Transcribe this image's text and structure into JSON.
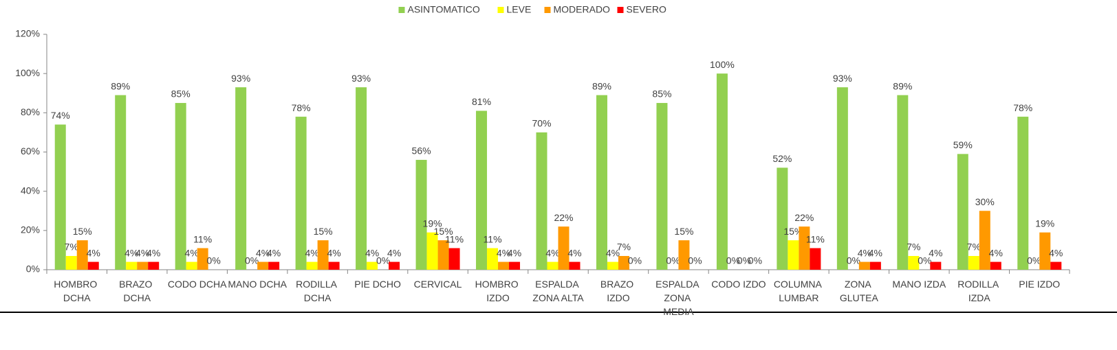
{
  "chart_data": {
    "type": "bar",
    "categories": [
      "HOMBRO DCHA",
      "BRAZO DCHA",
      "CODO DCHA",
      "MANO DCHA",
      "RODILLA DCHA",
      "PIE DCHO",
      "CERVICAL",
      "HOMBRO IZDO",
      "ESPALDA ZONA ALTA",
      "BRAZO IZDO",
      "ESPALDA ZONA MEDIA",
      "CODO IZDO",
      "COLUMNA LUMBAR",
      "ZONA GLUTEA",
      "MANO IZDA",
      "RODILLA IZDA",
      "PIE IZDO"
    ],
    "series": [
      {
        "name": "ASINTOMATICO",
        "color": "#92d050",
        "values": [
          74,
          89,
          85,
          93,
          78,
          93,
          56,
          81,
          70,
          89,
          85,
          100,
          52,
          93,
          89,
          59,
          78
        ],
        "value_labels": [
          "74%",
          "89%",
          "85%",
          "93%",
          "78%",
          "93%",
          "56%",
          "81%",
          "70%",
          "89%",
          "85%",
          "100%",
          "52%",
          "93%",
          "89%",
          "59%",
          "78%"
        ]
      },
      {
        "name": "LEVE",
        "color": "#ffff00",
        "values": [
          7,
          4,
          4,
          0,
          4,
          4,
          19,
          11,
          4,
          4,
          0,
          0,
          15,
          0,
          7,
          7,
          0
        ],
        "value_labels": [
          "7%",
          "4%",
          "4%",
          "0%",
          "4%",
          "4%",
          "19%",
          "11%",
          "4%",
          "4%",
          "0%",
          "0%",
          "15%",
          "0%",
          "7%",
          "7%",
          "0%"
        ]
      },
      {
        "name": "MODERADO",
        "color": "#ff9900",
        "values": [
          15,
          4,
          11,
          4,
          15,
          0,
          15,
          4,
          22,
          7,
          15,
          0,
          22,
          4,
          0,
          30,
          19
        ],
        "value_labels": [
          "15%",
          "4%",
          "11%",
          "4%",
          "15%",
          "0%",
          "15%",
          "4%",
          "22%",
          "7%",
          "15%",
          "0%",
          "22%",
          "4%",
          "0%",
          "30%",
          "19%"
        ]
      },
      {
        "name": "SEVERO",
        "color": "#ff0000",
        "values": [
          4,
          4,
          0,
          4,
          4,
          4,
          11,
          4,
          4,
          0,
          0,
          0,
          11,
          4,
          4,
          4,
          4
        ],
        "value_labels": [
          "4%",
          "4%",
          "0%",
          "4%",
          "4%",
          "4%",
          "11%",
          "4%",
          "4%",
          "0%",
          "0%",
          "0%",
          "11%",
          "4%",
          "4%",
          "4%",
          "4%"
        ]
      }
    ],
    "ylim": [
      0,
      120
    ],
    "yticks": [
      {
        "value": 0,
        "label": "0%"
      },
      {
        "value": 20,
        "label": "20%"
      },
      {
        "value": 40,
        "label": "40%"
      },
      {
        "value": 60,
        "label": "60%"
      },
      {
        "value": 80,
        "label": "80%"
      },
      {
        "value": 100,
        "label": "100%"
      },
      {
        "value": 120,
        "label": "120%"
      }
    ],
    "grid": false,
    "legend": "top"
  }
}
